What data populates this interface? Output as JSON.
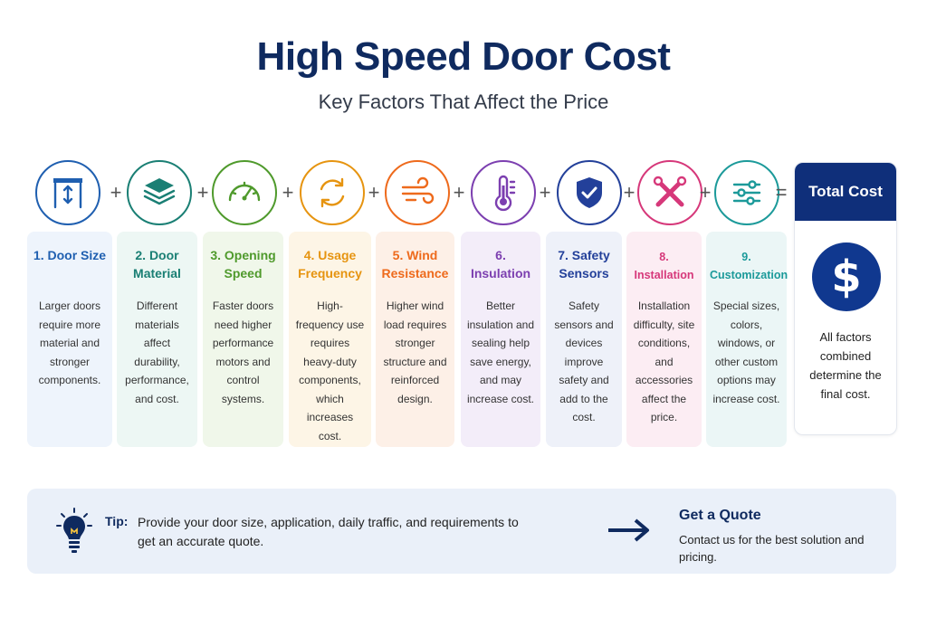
{
  "header": {
    "title": "High Speed Door Cost",
    "subtitle": "Key Factors That Affect the Price"
  },
  "operators": {
    "plus": "+",
    "equals": "="
  },
  "factors": [
    {
      "title": "1. Door Size",
      "description": "Larger doors require more material and stronger components.",
      "color": "#1f5fb0",
      "bg": "#eef4fc",
      "icon": "door-frame-icon"
    },
    {
      "title": "2. Door Material",
      "description": "Different materials affect durability, performance, and cost.",
      "color": "#1a7f74",
      "bg": "#edf7f4",
      "icon": "layers-icon"
    },
    {
      "title": "3. Opening Speed",
      "description": "Faster doors need higher performance motors and control systems.",
      "color": "#4f9a2c",
      "bg": "#f0f7ea",
      "icon": "speedometer-icon"
    },
    {
      "title": "4. Usage Frequency",
      "description": "High-frequency use requires heavy-duty components, which increases cost.",
      "color": "#e69410",
      "bg": "#fdf5e6",
      "icon": "cycle-arrows-icon"
    },
    {
      "title": "5. Wind Resistance",
      "description": "Higher wind load requires stronger structure and reinforced design.",
      "color": "#ee6a1c",
      "bg": "#fdf0e7",
      "icon": "wind-icon"
    },
    {
      "title": "6. Insulation",
      "description": "Better insulation and sealing help save energy, and may increase cost.",
      "color": "#7c3fb0",
      "bg": "#f3edf9",
      "icon": "thermometer-icon"
    },
    {
      "title": "7. Safety Sensors",
      "description": "Safety sensors and devices improve safety and add to the cost.",
      "color": "#23409a",
      "bg": "#eef1f9",
      "icon": "shield-check-icon"
    },
    {
      "title": "8. Installation",
      "description": "Installation difficulty, site conditions, and accessories affect the price.",
      "color": "#d6387a",
      "bg": "#fcedf3",
      "icon": "tools-icon"
    },
    {
      "title": "9. Customization",
      "description": "Special sizes, colors, windows, or other custom options may increase cost.",
      "color": "#1c9a9a",
      "bg": "#ebf6f6",
      "icon": "sliders-icon"
    }
  ],
  "total": {
    "title": "Total Cost",
    "symbol": "$",
    "description": "All factors combined determine the final cost.",
    "color": "#0f2f7a"
  },
  "tip": {
    "label": "Tip:",
    "text": "Provide your door size, application, daily traffic, and requirements to get an accurate quote.",
    "icon": "lightbulb-icon"
  },
  "quote": {
    "title": "Get a Quote",
    "text": "Contact us for the best solution and pricing.",
    "icon": "arrow-right-icon"
  }
}
